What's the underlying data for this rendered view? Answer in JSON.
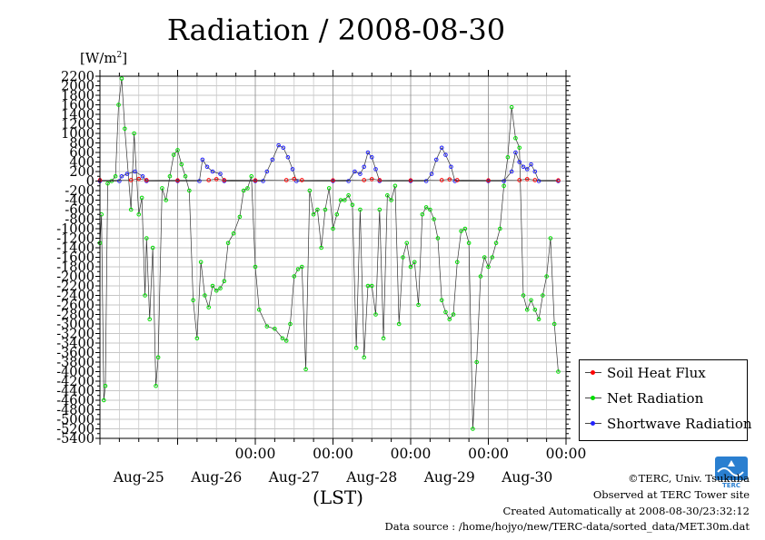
{
  "chart_data": {
    "type": "line",
    "title": "Radiation / 2008-08-30",
    "ylabel_unit": "[W/m",
    "ylabel_unit_sup": "2",
    "ylabel_unit_close": "]",
    "xlabel": "(LST)",
    "ylim": [
      -5400,
      2200
    ],
    "yticks": [
      2200,
      2000,
      1800,
      1600,
      1400,
      1200,
      1000,
      800,
      600,
      400,
      200,
      0,
      -200,
      -400,
      -600,
      -800,
      -1000,
      -1200,
      -1400,
      -1600,
      -1800,
      -2000,
      -2200,
      -2400,
      -2600,
      -2800,
      -3000,
      -3200,
      -3400,
      -3600,
      -3800,
      -4000,
      -4200,
      -4400,
      -4600,
      -4800,
      -5000,
      -5200,
      -5400
    ],
    "xlim_days": [
      -1.0,
      5.0
    ],
    "time_tick_label": "00:00",
    "time_ticks_days": [
      1,
      2,
      3,
      4,
      5
    ],
    "date_labels": [
      "Aug-25",
      "Aug-26",
      "Aug-27",
      "Aug-28",
      "Aug-29",
      "Aug-30"
    ],
    "grid": true,
    "legend_position": "lower-right",
    "series": [
      {
        "name": "Soil Heat Flux",
        "color": "#ff0000",
        "points": [
          [
            -1.0,
            20
          ],
          [
            -0.6,
            20
          ],
          [
            -0.5,
            45
          ],
          [
            -0.4,
            20
          ],
          [
            0.0,
            15
          ],
          [
            0.4,
            20
          ],
          [
            0.5,
            40
          ],
          [
            0.6,
            20
          ],
          [
            1.0,
            15
          ],
          [
            1.4,
            20
          ],
          [
            1.5,
            45
          ],
          [
            1.6,
            20
          ],
          [
            2.0,
            15
          ],
          [
            2.4,
            20
          ],
          [
            2.5,
            40
          ],
          [
            2.6,
            20
          ],
          [
            3.0,
            15
          ],
          [
            3.4,
            20
          ],
          [
            3.5,
            35
          ],
          [
            3.6,
            20
          ],
          [
            4.0,
            15
          ],
          [
            4.4,
            20
          ],
          [
            4.5,
            40
          ],
          [
            4.6,
            20
          ],
          [
            4.9,
            15
          ]
        ]
      },
      {
        "name": "Net Radiation",
        "color": "#00dd00",
        "points": [
          [
            -1.0,
            -1300
          ],
          [
            -0.98,
            -700
          ],
          [
            -0.95,
            -4600
          ],
          [
            -0.93,
            -4300
          ],
          [
            -0.9,
            -50
          ],
          [
            -0.85,
            0
          ],
          [
            -0.8,
            100
          ],
          [
            -0.76,
            1600
          ],
          [
            -0.72,
            2150
          ],
          [
            -0.68,
            1100
          ],
          [
            -0.6,
            -600
          ],
          [
            -0.56,
            1000
          ],
          [
            -0.5,
            -700
          ],
          [
            -0.46,
            -350
          ],
          [
            -0.42,
            -2400
          ],
          [
            -0.4,
            -1200
          ],
          [
            -0.36,
            -2900
          ],
          [
            -0.32,
            -1400
          ],
          [
            -0.28,
            -4300
          ],
          [
            -0.25,
            -3700
          ],
          [
            -0.2,
            -150
          ],
          [
            -0.15,
            -400
          ],
          [
            -0.1,
            100
          ],
          [
            -0.05,
            550
          ],
          [
            0.0,
            650
          ],
          [
            0.05,
            350
          ],
          [
            0.1,
            100
          ],
          [
            0.15,
            -200
          ],
          [
            0.2,
            -2500
          ],
          [
            0.25,
            -3300
          ],
          [
            0.3,
            -1700
          ],
          [
            0.35,
            -2400
          ],
          [
            0.4,
            -2650
          ],
          [
            0.45,
            -2200
          ],
          [
            0.5,
            -2300
          ],
          [
            0.55,
            -2250
          ],
          [
            0.6,
            -2100
          ],
          [
            0.65,
            -1300
          ],
          [
            0.72,
            -1100
          ],
          [
            0.8,
            -750
          ],
          [
            0.85,
            -200
          ],
          [
            0.9,
            -150
          ],
          [
            0.95,
            100
          ],
          [
            1.0,
            -1800
          ],
          [
            1.05,
            -2700
          ],
          [
            1.15,
            -3050
          ],
          [
            1.25,
            -3100
          ],
          [
            1.35,
            -3300
          ],
          [
            1.4,
            -3350
          ],
          [
            1.45,
            -3000
          ],
          [
            1.5,
            -2000
          ],
          [
            1.55,
            -1850
          ],
          [
            1.6,
            -1800
          ],
          [
            1.65,
            -3950
          ],
          [
            1.7,
            -200
          ],
          [
            1.75,
            -700
          ],
          [
            1.8,
            -600
          ],
          [
            1.85,
            -1400
          ],
          [
            1.9,
            -600
          ],
          [
            1.95,
            -150
          ],
          [
            2.0,
            -1000
          ],
          [
            2.05,
            -700
          ],
          [
            2.1,
            -400
          ],
          [
            2.15,
            -400
          ],
          [
            2.2,
            -300
          ],
          [
            2.25,
            -500
          ],
          [
            2.3,
            -3500
          ],
          [
            2.35,
            -600
          ],
          [
            2.4,
            -3700
          ],
          [
            2.45,
            -2200
          ],
          [
            2.5,
            -2200
          ],
          [
            2.55,
            -2800
          ],
          [
            2.6,
            -600
          ],
          [
            2.65,
            -3300
          ],
          [
            2.7,
            -300
          ],
          [
            2.75,
            -400
          ],
          [
            2.8,
            -100
          ],
          [
            2.85,
            -3000
          ],
          [
            2.9,
            -1600
          ],
          [
            2.95,
            -1300
          ],
          [
            3.0,
            -1800
          ],
          [
            3.05,
            -1700
          ],
          [
            3.1,
            -2600
          ],
          [
            3.15,
            -700
          ],
          [
            3.2,
            -550
          ],
          [
            3.25,
            -600
          ],
          [
            3.3,
            -800
          ],
          [
            3.35,
            -1200
          ],
          [
            3.4,
            -2500
          ],
          [
            3.45,
            -2750
          ],
          [
            3.5,
            -2900
          ],
          [
            3.55,
            -2800
          ],
          [
            3.6,
            -1700
          ],
          [
            3.65,
            -1050
          ],
          [
            3.7,
            -1000
          ],
          [
            3.75,
            -1300
          ],
          [
            3.8,
            -5200
          ],
          [
            3.85,
            -3800
          ],
          [
            3.9,
            -2000
          ],
          [
            3.95,
            -1600
          ],
          [
            4.0,
            -1800
          ],
          [
            4.05,
            -1600
          ],
          [
            4.1,
            -1300
          ],
          [
            4.15,
            -1000
          ],
          [
            4.2,
            -100
          ],
          [
            4.25,
            500
          ],
          [
            4.3,
            1550
          ],
          [
            4.35,
            900
          ],
          [
            4.4,
            700
          ],
          [
            4.45,
            -2400
          ],
          [
            4.5,
            -2700
          ],
          [
            4.55,
            -2500
          ],
          [
            4.6,
            -2700
          ],
          [
            4.65,
            -2900
          ],
          [
            4.7,
            -2400
          ],
          [
            4.75,
            -2000
          ],
          [
            4.8,
            -1200
          ],
          [
            4.85,
            -3000
          ],
          [
            4.9,
            -4000
          ]
        ]
      },
      {
        "name": "Shortwave Radiation",
        "color": "#2222ff",
        "points": [
          [
            -1.0,
            0
          ],
          [
            -0.75,
            0
          ],
          [
            -0.72,
            100
          ],
          [
            -0.65,
            150
          ],
          [
            -0.55,
            200
          ],
          [
            -0.45,
            100
          ],
          [
            -0.4,
            0
          ],
          [
            0.0,
            0
          ],
          [
            0.28,
            0
          ],
          [
            0.32,
            450
          ],
          [
            0.38,
            300
          ],
          [
            0.45,
            200
          ],
          [
            0.55,
            150
          ],
          [
            0.6,
            0
          ],
          [
            1.0,
            0
          ],
          [
            1.1,
            0
          ],
          [
            1.15,
            200
          ],
          [
            1.22,
            450
          ],
          [
            1.3,
            750
          ],
          [
            1.36,
            700
          ],
          [
            1.42,
            500
          ],
          [
            1.48,
            250
          ],
          [
            1.53,
            0
          ],
          [
            2.0,
            0
          ],
          [
            2.2,
            0
          ],
          [
            2.28,
            200
          ],
          [
            2.35,
            150
          ],
          [
            2.4,
            300
          ],
          [
            2.45,
            600
          ],
          [
            2.5,
            500
          ],
          [
            2.55,
            250
          ],
          [
            2.6,
            0
          ],
          [
            3.0,
            0
          ],
          [
            3.2,
            0
          ],
          [
            3.27,
            150
          ],
          [
            3.33,
            450
          ],
          [
            3.4,
            700
          ],
          [
            3.45,
            550
          ],
          [
            3.52,
            300
          ],
          [
            3.57,
            0
          ],
          [
            4.0,
            0
          ],
          [
            4.2,
            0
          ],
          [
            4.3,
            200
          ],
          [
            4.35,
            600
          ],
          [
            4.4,
            400
          ],
          [
            4.45,
            300
          ],
          [
            4.5,
            250
          ],
          [
            4.55,
            350
          ],
          [
            4.6,
            200
          ],
          [
            4.65,
            0
          ],
          [
            4.9,
            0
          ]
        ]
      }
    ]
  },
  "footer": {
    "copyright": "©TERC, Univ. Tsukuba",
    "observed": "Observed at TERC Tower site",
    "created": "Created Automatically at 2008-08-30/23:32:12",
    "source": "Data source : /home/hojyo/new/TERC-data/sorted_data/MET.30m.dat",
    "logo_text": "TERC"
  }
}
